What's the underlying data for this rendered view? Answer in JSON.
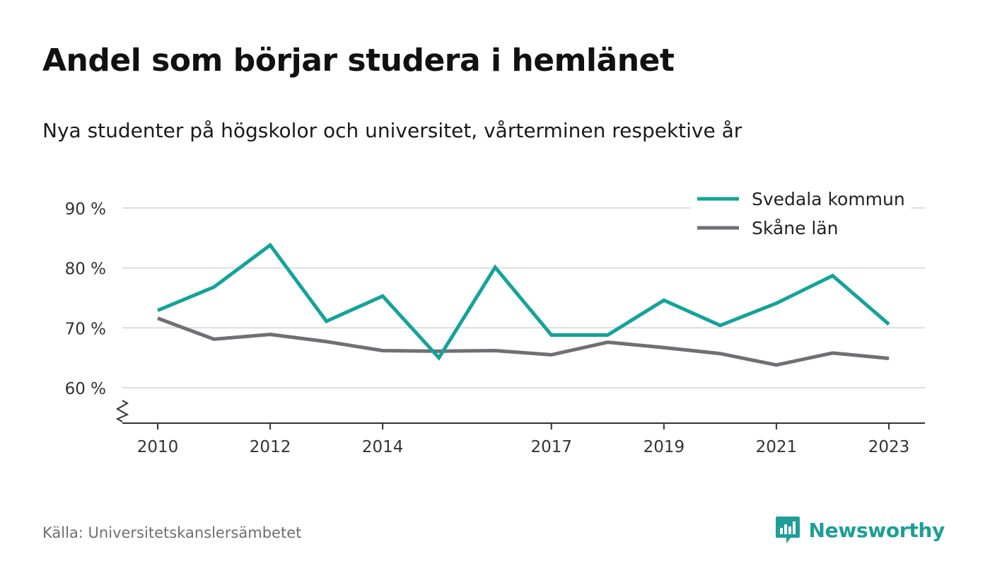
{
  "header": {
    "title": "Andel som börjar studera i hemlänet",
    "subtitle": "Nya studenter på högskolor och universitet, vårterminen respektive år"
  },
  "footer": {
    "source": "Källa: Universitetskanslersämbetet",
    "brand": "Newsworthy",
    "brand_icon": "bar-chart-speech-bubble-icon"
  },
  "colors": {
    "series_primary": "#13a399",
    "series_secondary": "#707074",
    "grid": "#dddddd",
    "axis": "#333333",
    "text": "#333333",
    "brand": "#1e9e96"
  },
  "chart_data": {
    "type": "line",
    "x": [
      2010,
      2011,
      2012,
      2013,
      2014,
      2015,
      2016,
      2017,
      2018,
      2019,
      2020,
      2021,
      2022,
      2023
    ],
    "x_ticks": [
      "2010",
      "2012",
      "2014",
      "2017",
      "2019",
      "2021",
      "2023"
    ],
    "y_ticks": [
      {
        "value": 60,
        "label": "60 %"
      },
      {
        "value": 70,
        "label": "70 %"
      },
      {
        "value": 80,
        "label": "80 %"
      },
      {
        "value": 90,
        "label": "90 %"
      }
    ],
    "ylim": [
      54,
      90
    ],
    "y_axis_break": true,
    "grid": true,
    "legend_position": "top-right",
    "series": [
      {
        "name": "Svedala kommun",
        "color": "#13a399",
        "values": [
          72.9,
          76.8,
          83.8,
          71.1,
          75.3,
          65.0,
          80.1,
          68.8,
          68.8,
          74.6,
          70.4,
          74.1,
          78.7,
          70.6
        ]
      },
      {
        "name": "Skåne län",
        "color": "#707074",
        "values": [
          71.6,
          68.1,
          68.9,
          67.7,
          66.2,
          66.1,
          66.2,
          65.5,
          67.6,
          66.7,
          65.7,
          63.8,
          65.8,
          64.9
        ]
      }
    ]
  }
}
